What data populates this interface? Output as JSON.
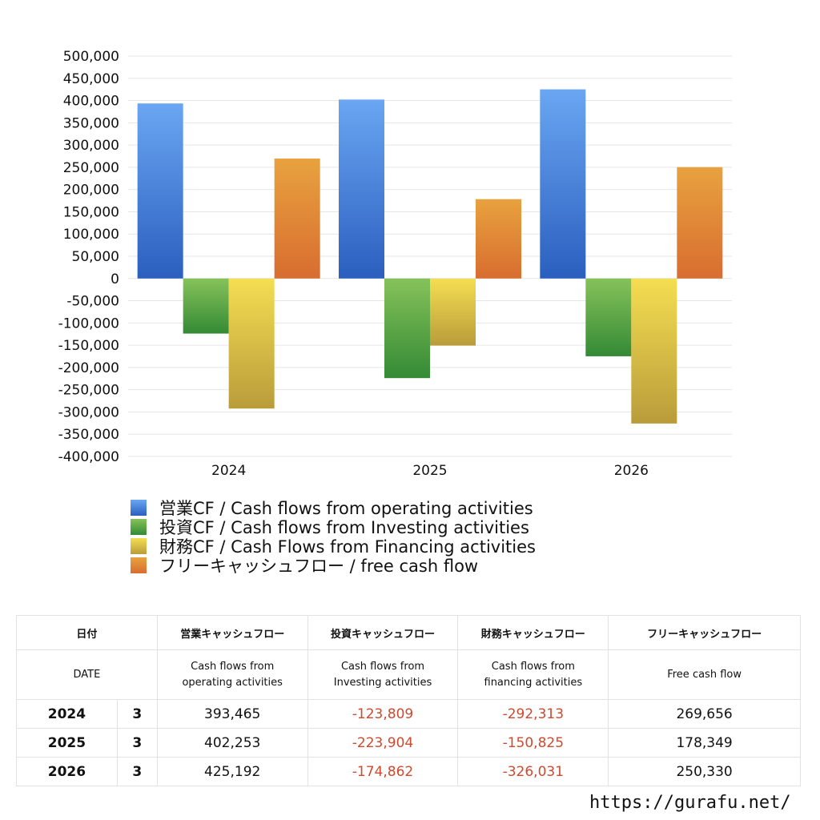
{
  "chart_data": {
    "type": "bar",
    "categories": [
      "2024",
      "2025",
      "2026"
    ],
    "series": [
      {
        "name": "営業CF / Cash flows from operating activities",
        "values": [
          393465,
          402253,
          425192
        ]
      },
      {
        "name": "投資CF / Cash flows from Investing activities",
        "values": [
          -123809,
          -223904,
          -174862
        ]
      },
      {
        "name": "財務CF / Cash Flows from Financing activities",
        "values": [
          -292313,
          -150825,
          -326031
        ]
      },
      {
        "name": "フリーキャッシュフロー / free cash flow",
        "values": [
          269656,
          178349,
          250330
        ]
      }
    ],
    "ylim": [
      -400000,
      500000
    ],
    "yticks": [
      "500,000",
      "450,000",
      "400,000",
      "350,000",
      "300,000",
      "250,000",
      "200,000",
      "150,000",
      "100,000",
      "50,000",
      "0",
      "-50,000",
      "-100,000",
      "-150,000",
      "-200,000",
      "-250,000",
      "-300,000",
      "-350,000",
      "-400,000"
    ],
    "grid": true,
    "legend_position": "bottom",
    "colors": [
      {
        "top": "#6aa6f2",
        "bottom": "#2b5fbf"
      },
      {
        "top": "#86c25a",
        "bottom": "#348a35"
      },
      {
        "top": "#f4de52",
        "bottom": "#b99c3a"
      },
      {
        "top": "#e8a23f",
        "bottom": "#d86d2f"
      }
    ]
  },
  "table": {
    "headers_jp": [
      "日付",
      "営業キャッシュフロー",
      "投資キャッシュフロー",
      "財務キャッシュフロー",
      "フリーキャッシュフロー"
    ],
    "headers_en": [
      "DATE",
      "Cash flows from operating activities",
      "Cash flows from Investing activities",
      "Cash flows from financing activities",
      "Free cash flow"
    ],
    "headers_en_lines": [
      [
        "DATE"
      ],
      [
        "Cash flows from",
        "operating activities"
      ],
      [
        "Cash flows from",
        "Investing activities"
      ],
      [
        "Cash flows from",
        "financing activities"
      ],
      [
        "Free cash flow"
      ]
    ],
    "rows": [
      {
        "year": "2024",
        "month": "3",
        "operating": "393,465",
        "investing": "-123,809",
        "financing": "-292,313",
        "free": "269,656"
      },
      {
        "year": "2025",
        "month": "3",
        "operating": "402,253",
        "investing": "-223,904",
        "financing": "-150,825",
        "free": "178,349"
      },
      {
        "year": "2026",
        "month": "3",
        "operating": "425,192",
        "investing": "-174,862",
        "financing": "-326,031",
        "free": "250,330"
      }
    ]
  },
  "source_url": "https://gurafu.net/"
}
